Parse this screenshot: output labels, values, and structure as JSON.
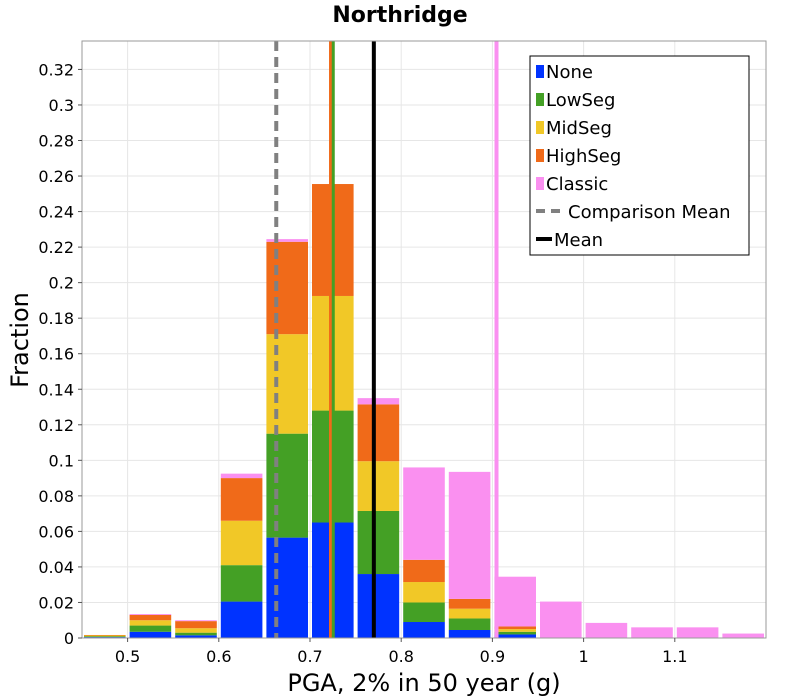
{
  "chart_data": {
    "type": "bar",
    "stacked": true,
    "title": "Northridge",
    "xlabel": "PGA, 2% in 50 year (g)",
    "ylabel": "Fraction",
    "xlim": [
      0.45,
      1.2
    ],
    "ylim": [
      0,
      0.336
    ],
    "grid": true,
    "legend_position": "top-right",
    "x_ticks": [
      "0.5",
      "0.6",
      "0.7",
      "0.8",
      "0.9",
      "1",
      "1.1"
    ],
    "y_ticks": [
      "0",
      "0.02",
      "0.04",
      "0.06",
      "0.08",
      "0.1",
      "0.12",
      "0.14",
      "0.16",
      "0.18",
      "0.2",
      "0.22",
      "0.24",
      "0.26",
      "0.28",
      "0.3",
      "0.32"
    ],
    "bin_width": 0.05,
    "x": [
      0.475,
      0.525,
      0.575,
      0.625,
      0.675,
      0.725,
      0.775,
      0.825,
      0.875,
      0.925,
      0.975,
      1.025,
      1.075,
      1.125,
      1.175
    ],
    "series": [
      {
        "name": "None",
        "color": "#0033ff",
        "values": [
          0.0005,
          0.0035,
          0.0015,
          0.0205,
          0.0565,
          0.065,
          0.036,
          0.009,
          0.0045,
          0.002,
          0,
          0,
          0,
          0,
          0
        ]
      },
      {
        "name": "LowSeg",
        "color": "#44a025",
        "values": [
          0.0005,
          0.0035,
          0.0015,
          0.0205,
          0.0585,
          0.063,
          0.0355,
          0.011,
          0.0065,
          0.0015,
          0,
          0,
          0,
          0,
          0
        ]
      },
      {
        "name": "MidSeg",
        "color": "#f1c827",
        "values": [
          0.0004,
          0.003,
          0.0025,
          0.025,
          0.056,
          0.0645,
          0.028,
          0.0115,
          0.0055,
          0.0015,
          0,
          0,
          0,
          0,
          0
        ]
      },
      {
        "name": "HighSeg",
        "color": "#f06a19",
        "values": [
          0.0003,
          0.003,
          0.004,
          0.024,
          0.052,
          0.063,
          0.032,
          0.0125,
          0.0055,
          0.0015,
          0,
          0,
          0,
          0,
          0
        ]
      },
      {
        "name": "Classic",
        "color": "#fa90f0",
        "values": [
          0,
          0.0005,
          0.0005,
          0.0025,
          0.0015,
          0,
          0.0035,
          0.052,
          0.0715,
          0.028,
          0.0205,
          0.0085,
          0.006,
          0.006,
          0.0025
        ]
      }
    ],
    "vertical_lines": [
      {
        "name": "Comparison Mean",
        "x": 0.663,
        "color": "#808080",
        "style": "dashed",
        "width": 4
      },
      {
        "name": "Mean",
        "x": 0.77,
        "color": "#000000",
        "style": "solid",
        "width": 4
      },
      {
        "name": "",
        "x": 0.7225,
        "color": "#f06a19",
        "style": "solid",
        "width": 3
      },
      {
        "name": "",
        "x": 0.7255,
        "color": "#44a025",
        "style": "solid",
        "width": 3
      },
      {
        "name": "",
        "x": 0.9045,
        "color": "#fa90f0",
        "style": "solid",
        "width": 4
      }
    ],
    "legend": [
      {
        "label": "None",
        "symbol": "box",
        "color": "#0033ff"
      },
      {
        "label": "LowSeg",
        "symbol": "box",
        "color": "#44a025"
      },
      {
        "label": "MidSeg",
        "symbol": "box",
        "color": "#f1c827"
      },
      {
        "label": "HighSeg",
        "symbol": "box",
        "color": "#f06a19"
      },
      {
        "label": "Classic",
        "symbol": "box",
        "color": "#fa90f0"
      },
      {
        "label": "Comparison Mean",
        "symbol": "dashed-line",
        "color": "#808080"
      },
      {
        "label": "Mean",
        "symbol": "solid-line",
        "color": "#000000"
      }
    ]
  }
}
